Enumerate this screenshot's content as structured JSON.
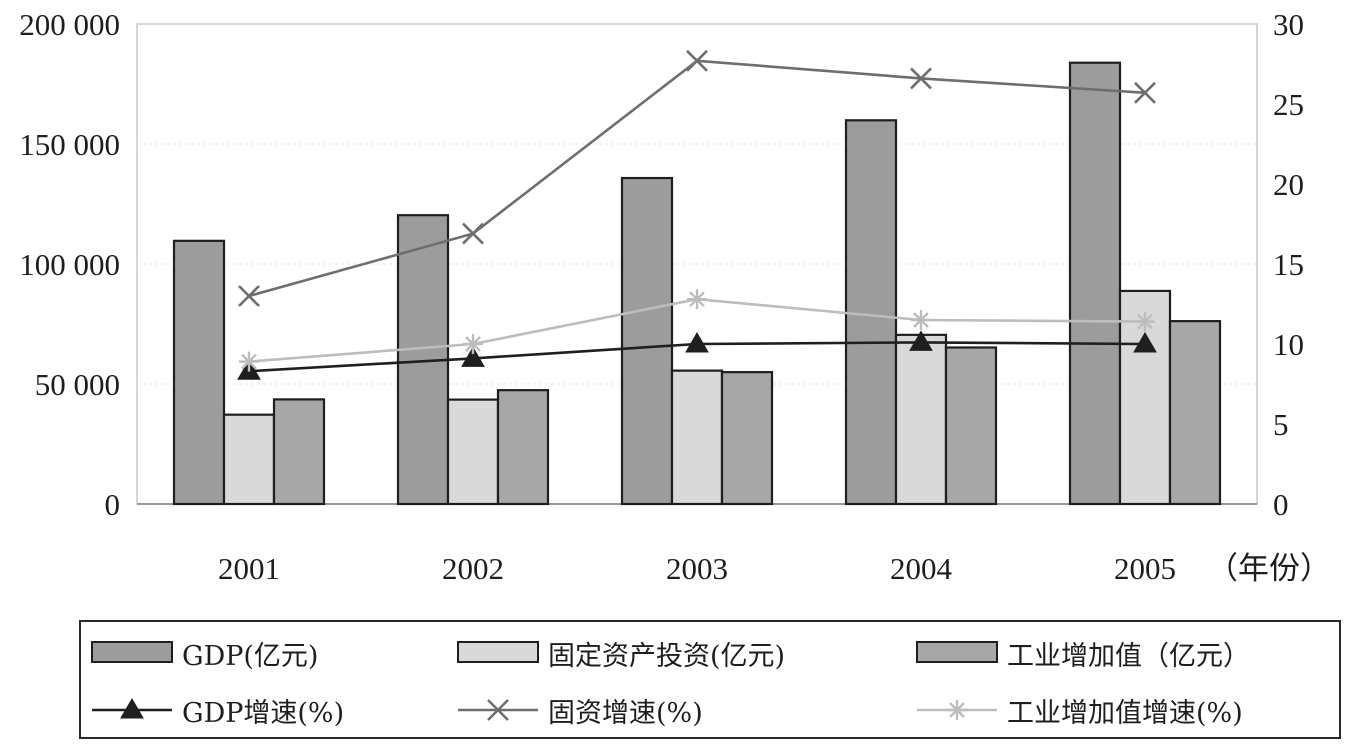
{
  "chart_data": {
    "type": "bar",
    "title": "",
    "categories": [
      "2001",
      "2002",
      "2003",
      "2004",
      "2005"
    ],
    "x_unit_label": "（年份）",
    "y_left": {
      "ticks": [
        0,
        50000,
        100000,
        150000,
        200000
      ],
      "tick_labels": [
        "0",
        "50 000",
        "100 000",
        "150 000",
        "200 000"
      ],
      "ylim": [
        0,
        200000
      ]
    },
    "y_right": {
      "ticks": [
        0,
        5,
        10,
        15,
        20,
        25,
        30
      ],
      "tick_labels": [
        "0",
        "5",
        "10",
        "15",
        "20",
        "25",
        "30"
      ],
      "ylim": [
        0,
        30
      ]
    },
    "series": [
      {
        "name": "GDP(亿元)",
        "kind": "bar",
        "axis": "left",
        "color": "#9c9c9c",
        "values": [
          109655,
          120333,
          135823,
          159878,
          183868
        ]
      },
      {
        "name": "固定资产投资(亿元)",
        "kind": "bar",
        "axis": "left",
        "color": "#d9d9d9",
        "values": [
          37214,
          43500,
          55567,
          70477,
          88774
        ]
      },
      {
        "name": "工业增加值（亿元）",
        "kind": "bar",
        "axis": "left",
        "color": "#a7a7a7",
        "values": [
          43581,
          47431,
          54946,
          65210,
          76190
        ]
      },
      {
        "name": "GDP增速(%)",
        "kind": "line",
        "axis": "right",
        "marker": "triangle",
        "color": "#1f1f1f",
        "values": [
          8.3,
          9.1,
          10.0,
          10.1,
          10.0
        ]
      },
      {
        "name": "固资增速(%)",
        "kind": "line",
        "axis": "right",
        "marker": "x",
        "color": "#6e6e6e",
        "values": [
          13.0,
          16.9,
          27.7,
          26.6,
          25.7
        ]
      },
      {
        "name": "工业增加值增速(%)",
        "kind": "line",
        "axis": "right",
        "marker": "star",
        "color": "#bdbdbd",
        "values": [
          8.9,
          10.0,
          12.8,
          11.5,
          11.4
        ]
      }
    ],
    "grid": true,
    "legend_position": "bottom"
  },
  "legend": {
    "items": [
      {
        "label": "GDP(亿元)"
      },
      {
        "label": "固定资产投资(亿元)"
      },
      {
        "label": "工业增加值（亿元）"
      },
      {
        "label": "GDP增速(%)"
      },
      {
        "label": "固资增速(%)"
      },
      {
        "label": "工业增加值增速(%)"
      }
    ]
  }
}
